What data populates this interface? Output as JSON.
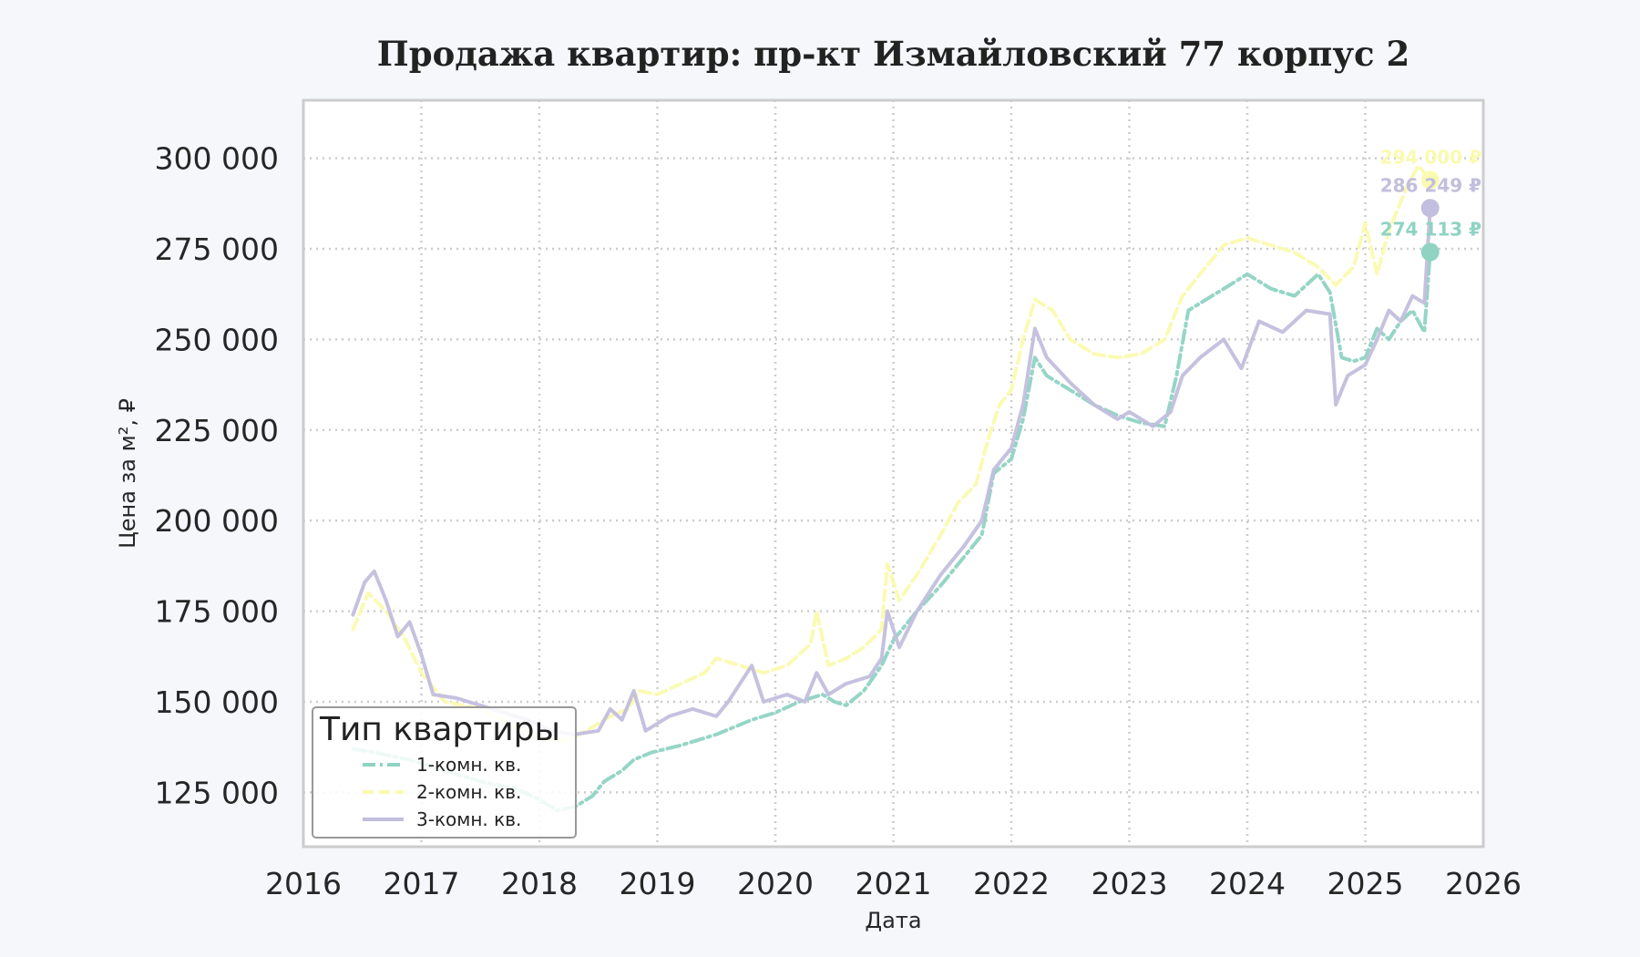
{
  "chart_data": {
    "type": "line",
    "title": "Продажа квартир: пр-кт Измайловский 77 корпус 2",
    "xlabel": "Дата",
    "ylabel": "Цена за м², ₽",
    "xlim": [
      2016,
      2026
    ],
    "ylim": [
      110000,
      316000
    ],
    "x_ticks": [
      2016,
      2017,
      2018,
      2019,
      2020,
      2021,
      2022,
      2023,
      2024,
      2025,
      2026
    ],
    "y_ticks": [
      125000,
      150000,
      175000,
      200000,
      225000,
      250000,
      275000,
      300000
    ],
    "y_tick_labels": [
      "125 000",
      "150 000",
      "175 000",
      "200 000",
      "225 000",
      "250 000",
      "275 000",
      "300 000"
    ],
    "x_tick_labels": [
      "2016",
      "2017",
      "2018",
      "2019",
      "2020",
      "2021",
      "2022",
      "2023",
      "2024",
      "2025",
      "2026"
    ],
    "grid": true,
    "legend": {
      "title": "Тип квартиры",
      "position": "bottom-left"
    },
    "series": [
      {
        "name": "1-комн. кв.",
        "color": "#8fd3c3",
        "style": "dashdot",
        "end_label": "274 113 ₽",
        "end_value": 274113,
        "points": [
          [
            2016.42,
            137000
          ],
          [
            2016.6,
            136000
          ],
          [
            2016.9,
            134000
          ],
          [
            2017.2,
            131000
          ],
          [
            2017.5,
            128000
          ],
          [
            2017.8,
            126000
          ],
          [
            2018.0,
            123000
          ],
          [
            2018.15,
            120000
          ],
          [
            2018.3,
            121000
          ],
          [
            2018.45,
            124000
          ],
          [
            2018.55,
            128000
          ],
          [
            2018.7,
            131000
          ],
          [
            2018.8,
            134000
          ],
          [
            2018.95,
            136000
          ],
          [
            2019.2,
            138000
          ],
          [
            2019.5,
            141000
          ],
          [
            2019.8,
            145000
          ],
          [
            2020.0,
            147000
          ],
          [
            2020.2,
            150000
          ],
          [
            2020.4,
            152000
          ],
          [
            2020.5,
            150000
          ],
          [
            2020.6,
            149000
          ],
          [
            2020.75,
            153000
          ],
          [
            2020.9,
            160000
          ],
          [
            2021.0,
            167000
          ],
          [
            2021.2,
            175000
          ],
          [
            2021.4,
            182000
          ],
          [
            2021.6,
            190000
          ],
          [
            2021.75,
            196000
          ],
          [
            2021.85,
            213000
          ],
          [
            2022.0,
            217000
          ],
          [
            2022.1,
            228000
          ],
          [
            2022.2,
            245000
          ],
          [
            2022.3,
            240000
          ],
          [
            2022.5,
            236000
          ],
          [
            2022.7,
            232000
          ],
          [
            2022.9,
            229000
          ],
          [
            2023.1,
            227000
          ],
          [
            2023.3,
            226000
          ],
          [
            2023.4,
            240000
          ],
          [
            2023.5,
            258000
          ],
          [
            2023.7,
            262000
          ],
          [
            2023.9,
            266000
          ],
          [
            2024.0,
            268000
          ],
          [
            2024.2,
            264000
          ],
          [
            2024.4,
            262000
          ],
          [
            2024.6,
            268000
          ],
          [
            2024.7,
            263000
          ],
          [
            2024.8,
            245000
          ],
          [
            2024.9,
            244000
          ],
          [
            2025.0,
            245000
          ],
          [
            2025.1,
            253000
          ],
          [
            2025.2,
            250000
          ],
          [
            2025.3,
            255000
          ],
          [
            2025.4,
            258000
          ],
          [
            2025.5,
            252000
          ],
          [
            2025.55,
            274113
          ]
        ]
      },
      {
        "name": "2-комн. кв.",
        "color": "#fafab0",
        "style": "dashed",
        "end_label": "294 000 ₽",
        "end_value": 294000,
        "points": [
          [
            2016.42,
            170000
          ],
          [
            2016.55,
            180000
          ],
          [
            2016.7,
            175000
          ],
          [
            2016.85,
            168000
          ],
          [
            2017.0,
            158000
          ],
          [
            2017.2,
            150000
          ],
          [
            2017.5,
            148000
          ],
          [
            2017.8,
            143000
          ],
          [
            2018.0,
            140000
          ],
          [
            2018.2,
            139000
          ],
          [
            2018.4,
            142000
          ],
          [
            2018.6,
            146000
          ],
          [
            2018.75,
            148000
          ],
          [
            2018.85,
            153000
          ],
          [
            2019.0,
            152000
          ],
          [
            2019.2,
            155000
          ],
          [
            2019.4,
            158000
          ],
          [
            2019.5,
            162000
          ],
          [
            2019.7,
            160000
          ],
          [
            2019.9,
            158000
          ],
          [
            2020.1,
            160000
          ],
          [
            2020.3,
            166000
          ],
          [
            2020.35,
            175000
          ],
          [
            2020.45,
            160000
          ],
          [
            2020.6,
            162000
          ],
          [
            2020.75,
            165000
          ],
          [
            2020.9,
            170000
          ],
          [
            2020.95,
            188000
          ],
          [
            2021.05,
            178000
          ],
          [
            2021.2,
            185000
          ],
          [
            2021.4,
            196000
          ],
          [
            2021.55,
            205000
          ],
          [
            2021.7,
            210000
          ],
          [
            2021.8,
            222000
          ],
          [
            2021.9,
            232000
          ],
          [
            2022.0,
            236000
          ],
          [
            2022.1,
            250000
          ],
          [
            2022.2,
            261000
          ],
          [
            2022.35,
            258000
          ],
          [
            2022.5,
            250000
          ],
          [
            2022.7,
            246000
          ],
          [
            2022.9,
            245000
          ],
          [
            2023.1,
            246000
          ],
          [
            2023.3,
            250000
          ],
          [
            2023.45,
            262000
          ],
          [
            2023.6,
            268000
          ],
          [
            2023.8,
            276000
          ],
          [
            2024.0,
            278000
          ],
          [
            2024.2,
            276000
          ],
          [
            2024.4,
            274000
          ],
          [
            2024.6,
            270000
          ],
          [
            2024.75,
            265000
          ],
          [
            2024.9,
            270000
          ],
          [
            2025.0,
            282000
          ],
          [
            2025.1,
            268000
          ],
          [
            2025.2,
            280000
          ],
          [
            2025.35,
            292000
          ],
          [
            2025.45,
            298000
          ],
          [
            2025.55,
            294000
          ]
        ]
      },
      {
        "name": "3-комн. кв.",
        "color": "#c2bedd",
        "style": "solid",
        "end_label": "286 249 ₽",
        "end_value": 286249,
        "points": [
          [
            2016.42,
            174000
          ],
          [
            2016.52,
            183000
          ],
          [
            2016.6,
            186000
          ],
          [
            2016.7,
            178000
          ],
          [
            2016.8,
            168000
          ],
          [
            2016.9,
            172000
          ],
          [
            2017.0,
            163000
          ],
          [
            2017.1,
            152000
          ],
          [
            2017.3,
            151000
          ],
          [
            2017.5,
            149000
          ],
          [
            2017.7,
            147000
          ],
          [
            2017.9,
            145000
          ],
          [
            2018.1,
            142000
          ],
          [
            2018.3,
            141000
          ],
          [
            2018.5,
            142000
          ],
          [
            2018.6,
            148000
          ],
          [
            2018.7,
            145000
          ],
          [
            2018.8,
            153000
          ],
          [
            2018.9,
            142000
          ],
          [
            2019.1,
            146000
          ],
          [
            2019.3,
            148000
          ],
          [
            2019.5,
            146000
          ],
          [
            2019.6,
            150000
          ],
          [
            2019.8,
            160000
          ],
          [
            2019.9,
            150000
          ],
          [
            2020.1,
            152000
          ],
          [
            2020.25,
            150000
          ],
          [
            2020.35,
            158000
          ],
          [
            2020.45,
            152000
          ],
          [
            2020.6,
            155000
          ],
          [
            2020.8,
            157000
          ],
          [
            2020.9,
            162000
          ],
          [
            2020.95,
            175000
          ],
          [
            2021.05,
            165000
          ],
          [
            2021.2,
            175000
          ],
          [
            2021.4,
            185000
          ],
          [
            2021.6,
            193000
          ],
          [
            2021.75,
            200000
          ],
          [
            2021.85,
            214000
          ],
          [
            2022.0,
            220000
          ],
          [
            2022.1,
            232000
          ],
          [
            2022.2,
            253000
          ],
          [
            2022.3,
            245000
          ],
          [
            2022.5,
            238000
          ],
          [
            2022.7,
            232000
          ],
          [
            2022.9,
            228000
          ],
          [
            2023.0,
            230000
          ],
          [
            2023.2,
            226000
          ],
          [
            2023.35,
            230000
          ],
          [
            2023.45,
            240000
          ],
          [
            2023.6,
            245000
          ],
          [
            2023.8,
            250000
          ],
          [
            2023.95,
            242000
          ],
          [
            2024.1,
            255000
          ],
          [
            2024.3,
            252000
          ],
          [
            2024.5,
            258000
          ],
          [
            2024.7,
            257000
          ],
          [
            2024.75,
            232000
          ],
          [
            2024.85,
            240000
          ],
          [
            2025.0,
            243000
          ],
          [
            2025.1,
            250000
          ],
          [
            2025.2,
            258000
          ],
          [
            2025.3,
            255000
          ],
          [
            2025.4,
            262000
          ],
          [
            2025.5,
            260000
          ],
          [
            2025.55,
            286249
          ]
        ]
      }
    ]
  }
}
